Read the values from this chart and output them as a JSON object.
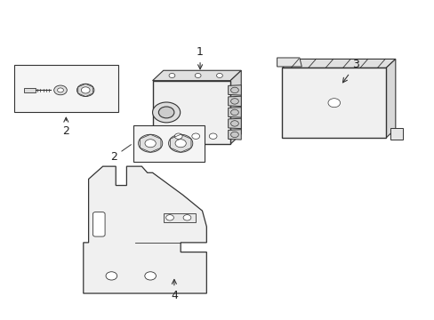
{
  "bg_color": "#ffffff",
  "line_color": "#333333",
  "label_color": "#222222",
  "fig_width": 4.89,
  "fig_height": 3.6,
  "dpi": 100
}
